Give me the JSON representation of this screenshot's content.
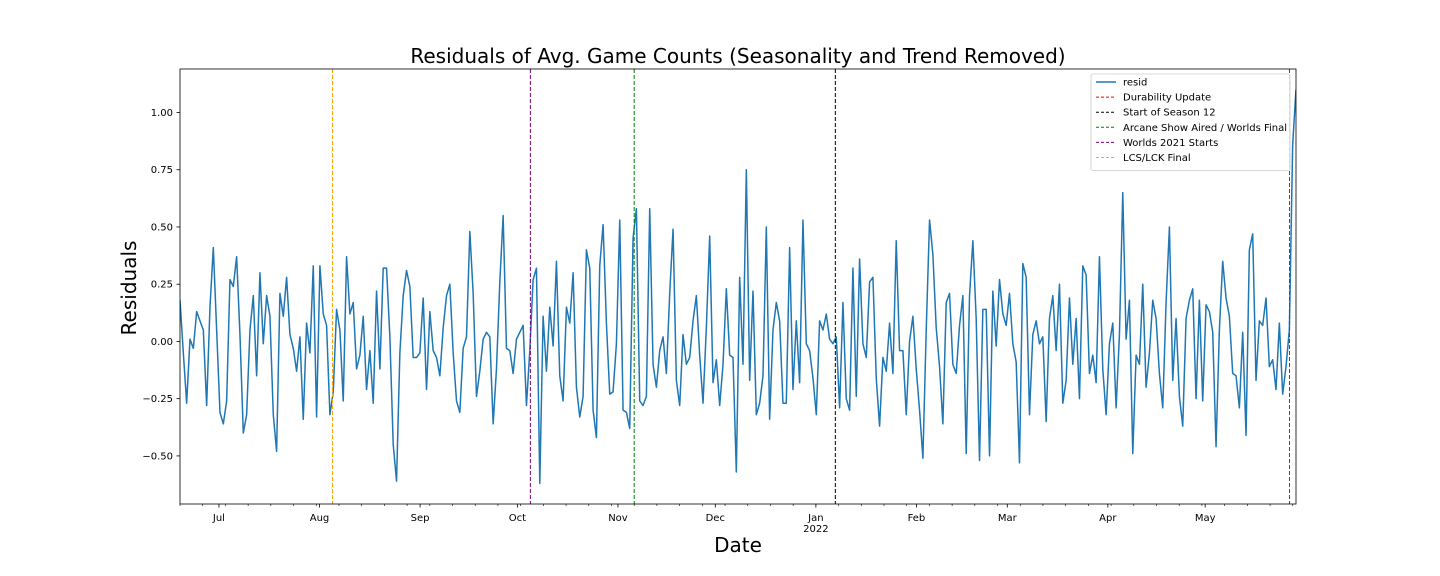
{
  "chart_data": {
    "type": "line",
    "title": "Residuals of Avg. Game Counts (Seasonality and Trend Removed)",
    "xlabel": "Date",
    "ylabel": "Residuals",
    "x_start": "2021-06-19",
    "x_end": "2022-05-29",
    "ylim": [
      -0.71,
      1.19
    ],
    "y_ticks": [
      -0.5,
      -0.25,
      0.0,
      0.25,
      0.5,
      0.75,
      1.0
    ],
    "y_tick_labels": [
      "−0.50",
      "−0.25",
      "0.00",
      "0.25",
      "0.50",
      "0.75",
      "1.00"
    ],
    "x_ticks": [
      {
        "date": "2021-07-01",
        "label": "Jul"
      },
      {
        "date": "2021-08-01",
        "label": "Aug"
      },
      {
        "date": "2021-09-01",
        "label": "Sep"
      },
      {
        "date": "2021-10-01",
        "label": "Oct"
      },
      {
        "date": "2021-11-01",
        "label": "Nov"
      },
      {
        "date": "2021-12-01",
        "label": "Dec"
      },
      {
        "date": "2022-01-01",
        "label": "Jan",
        "sublabel": "2022"
      },
      {
        "date": "2022-02-01",
        "label": "Feb"
      },
      {
        "date": "2022-03-01",
        "label": "Mar"
      },
      {
        "date": "2022-04-01",
        "label": "Apr"
      },
      {
        "date": "2022-05-01",
        "label": "May"
      }
    ],
    "grid": false,
    "legend_position": "top-right",
    "series": [
      {
        "name": "resid",
        "color": "#1f77b4",
        "values": [
          0.18,
          -0.05,
          -0.27,
          0.01,
          -0.03,
          0.13,
          0.09,
          0.05,
          -0.28,
          0.15,
          0.41,
          0.05,
          -0.31,
          -0.36,
          -0.26,
          0.27,
          0.24,
          0.37,
          0.03,
          -0.4,
          -0.32,
          0.05,
          0.2,
          -0.15,
          0.3,
          -0.01,
          0.2,
          0.11,
          -0.32,
          -0.48,
          0.21,
          0.11,
          0.28,
          0.03,
          -0.03,
          -0.13,
          0.02,
          -0.34,
          0.08,
          -0.05,
          0.33,
          -0.33,
          0.33,
          0.12,
          0.07,
          -0.32,
          -0.22,
          0.14,
          0.05,
          -0.26,
          0.37,
          0.12,
          0.17,
          -0.12,
          -0.06,
          0.11,
          -0.21,
          -0.04,
          -0.27,
          0.22,
          -0.12,
          0.32,
          0.32,
          0.02,
          -0.45,
          -0.61,
          -0.05,
          0.2,
          0.31,
          0.24,
          -0.07,
          -0.07,
          -0.05,
          0.19,
          -0.21,
          0.13,
          -0.04,
          -0.07,
          -0.15,
          0.06,
          0.2,
          0.25,
          -0.05,
          -0.26,
          -0.31,
          -0.03,
          0.02,
          0.48,
          0.21,
          -0.24,
          -0.13,
          0.01,
          0.04,
          0.02,
          -0.36,
          -0.12,
          0.26,
          0.55,
          -0.03,
          -0.04,
          -0.14,
          0.01,
          0.04,
          0.07,
          -0.28,
          -0.04,
          0.27,
          0.32,
          -0.62,
          0.11,
          -0.13,
          0.15,
          -0.02,
          0.35,
          -0.15,
          -0.26,
          0.15,
          0.08,
          0.3,
          -0.2,
          -0.33,
          -0.24,
          0.4,
          0.32,
          -0.3,
          -0.42,
          0.33,
          0.51,
          0.08,
          -0.23,
          -0.22,
          -0.01,
          0.53,
          -0.3,
          -0.31,
          -0.38,
          0.45,
          0.58,
          -0.26,
          -0.28,
          -0.24,
          0.58,
          -0.1,
          -0.2,
          -0.04,
          0.02,
          -0.14,
          0.21,
          0.49,
          -0.17,
          -0.28,
          0.03,
          -0.1,
          -0.07,
          0.09,
          0.2,
          -0.06,
          -0.27,
          0.06,
          0.46,
          -0.18,
          -0.08,
          -0.28,
          -0.1,
          0.23,
          -0.06,
          -0.07,
          -0.57,
          0.28,
          -0.1,
          0.75,
          -0.17,
          0.22,
          -0.32,
          -0.27,
          -0.15,
          0.5,
          -0.34,
          0.05,
          0.17,
          0.09,
          -0.27,
          -0.27,
          0.41,
          -0.21,
          0.09,
          -0.18,
          0.53,
          -0.01,
          -0.04,
          -0.16,
          -0.32,
          0.09,
          0.05,
          0.12,
          0.01,
          -0.01,
          0.02,
          -0.29,
          0.17,
          -0.25,
          -0.3,
          0.32,
          -0.24,
          0.36,
          -0.01,
          -0.07,
          0.26,
          0.28,
          -0.16,
          -0.37,
          -0.07,
          -0.13,
          0.08,
          -0.14,
          0.44,
          -0.04,
          -0.04,
          -0.32,
          0.0,
          0.11,
          -0.12,
          -0.3,
          -0.51,
          0.05,
          0.53,
          0.38,
          0.06,
          -0.11,
          -0.36,
          0.17,
          0.21,
          -0.1,
          -0.14,
          0.07,
          0.2,
          -0.49,
          0.2,
          0.44,
          0.1,
          -0.52,
          0.14,
          0.14,
          -0.5,
          0.22,
          -0.02,
          0.27,
          0.12,
          0.07,
          0.21,
          -0.01,
          -0.09,
          -0.53,
          0.34,
          0.28,
          -0.32,
          0.03,
          0.09,
          -0.01,
          0.02,
          -0.35,
          0.1,
          0.2,
          -0.04,
          0.25,
          -0.27,
          -0.17,
          0.19,
          -0.1,
          0.1,
          -0.25,
          0.33,
          0.29,
          -0.14,
          -0.06,
          -0.18,
          0.37,
          -0.12,
          -0.32,
          -0.01,
          0.08,
          -0.29,
          0.03,
          0.65,
          0.01,
          0.18,
          -0.49,
          -0.06,
          -0.1,
          0.25,
          -0.2,
          -0.05,
          0.18,
          0.1,
          -0.14,
          -0.29,
          0.17,
          0.5,
          -0.17,
          0.1,
          -0.24,
          -0.37,
          0.1,
          0.18,
          0.23,
          -0.25,
          0.18,
          -0.26,
          0.16,
          0.13,
          0.04,
          -0.46,
          0.05,
          0.35,
          0.19,
          0.11,
          -0.14,
          -0.15,
          -0.29,
          0.04,
          -0.41,
          0.4,
          0.47,
          -0.17,
          0.09,
          0.07,
          0.19,
          -0.11,
          -0.08,
          -0.21,
          0.08,
          -0.23,
          -0.11,
          0.05,
          0.86,
          1.1
        ]
      }
    ],
    "event_lines": [
      {
        "name": "Durability Update",
        "date": "2022-05-27",
        "color": "#ff0000"
      },
      {
        "name": "Start of Season 12",
        "date": "2022-01-07",
        "color": "#000000"
      },
      {
        "name": "Arcane Show Aired / Worlds Final",
        "date": "2021-11-06",
        "color": "#008000"
      },
      {
        "name": "Worlds 2021 Starts",
        "date": "2021-10-05",
        "color": "#800080"
      },
      {
        "name": "LCS/LCK Final",
        "date": "2021-08-05",
        "color": "#ffa500"
      }
    ]
  }
}
